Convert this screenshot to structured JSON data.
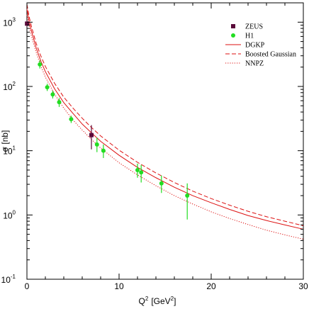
{
  "chart_data": {
    "type": "scatter",
    "xlabel_base": "Q",
    "xlabel_sup": "2",
    "xlabel_unit_open": "[GeV",
    "xlabel_unit_sup": "2",
    "xlabel_unit_close": "]",
    "ylabel": "σ [nb]",
    "xlim": [
      0,
      30
    ],
    "ylim": [
      0.1,
      2000
    ],
    "yscale": "log",
    "grid": false,
    "legend_position": "top-right",
    "x_ticks": [
      {
        "value": 0,
        "label": "0"
      },
      {
        "value": 10,
        "label": "10"
      },
      {
        "value": 20,
        "label": "20"
      },
      {
        "value": 30,
        "label": "30"
      }
    ],
    "y_ticks": [
      {
        "value": 0.1,
        "base": "10",
        "exp": "-1"
      },
      {
        "value": 1,
        "base": "10",
        "exp": "0"
      },
      {
        "value": 10,
        "base": "10",
        "exp": "1"
      },
      {
        "value": 100,
        "base": "10",
        "exp": "2"
      },
      {
        "value": 1000,
        "base": "10",
        "exp": "3"
      }
    ],
    "series": [
      {
        "name": "ZEUS",
        "kind": "points",
        "marker": "square",
        "color": "#5a0a3a",
        "points": [
          {
            "x": 0.01,
            "y": 950,
            "ylo": 860,
            "yhi": 1050
          },
          {
            "x": 7.0,
            "y": 17.5,
            "ylo": 10.5,
            "yhi": 25.0
          }
        ]
      },
      {
        "name": "H1",
        "kind": "points",
        "marker": "circle",
        "color": "#22dd22",
        "points": [
          {
            "x": 1.4,
            "y": 220,
            "ylo": 190,
            "yhi": 255
          },
          {
            "x": 2.2,
            "y": 97,
            "ylo": 85,
            "yhi": 110
          },
          {
            "x": 2.8,
            "y": 75,
            "ylo": 65,
            "yhi": 86
          },
          {
            "x": 3.5,
            "y": 57,
            "ylo": 48,
            "yhi": 66
          },
          {
            "x": 4.8,
            "y": 31,
            "ylo": 27,
            "yhi": 35
          },
          {
            "x": 7.6,
            "y": 12.5,
            "ylo": 9.5,
            "yhi": 16.0
          },
          {
            "x": 8.3,
            "y": 10.0,
            "ylo": 7.7,
            "yhi": 12.5
          },
          {
            "x": 12.0,
            "y": 5.0,
            "ylo": 3.8,
            "yhi": 6.3
          },
          {
            "x": 12.4,
            "y": 4.6,
            "ylo": 3.2,
            "yhi": 6.0
          },
          {
            "x": 14.6,
            "y": 3.1,
            "ylo": 2.2,
            "yhi": 4.1
          },
          {
            "x": 17.4,
            "y": 2.0,
            "ylo": 0.85,
            "yhi": 3.1
          }
        ]
      },
      {
        "name": "DGKP",
        "kind": "curve",
        "style": "solid",
        "color": "#dd1111",
        "points": [
          {
            "x": 0,
            "y": 1600
          },
          {
            "x": 0.25,
            "y": 1000
          },
          {
            "x": 0.5,
            "y": 720
          },
          {
            "x": 1,
            "y": 400
          },
          {
            "x": 1.5,
            "y": 250
          },
          {
            "x": 2,
            "y": 170
          },
          {
            "x": 3,
            "y": 92
          },
          {
            "x": 4,
            "y": 56
          },
          {
            "x": 5,
            "y": 38
          },
          {
            "x": 6,
            "y": 26
          },
          {
            "x": 7,
            "y": 19
          },
          {
            "x": 8,
            "y": 14
          },
          {
            "x": 10,
            "y": 8.5
          },
          {
            "x": 12,
            "y": 5.5
          },
          {
            "x": 14,
            "y": 3.8
          },
          {
            "x": 16,
            "y": 2.7
          },
          {
            "x": 18,
            "y": 2.0
          },
          {
            "x": 20,
            "y": 1.55
          },
          {
            "x": 22,
            "y": 1.22
          },
          {
            "x": 24,
            "y": 0.98
          },
          {
            "x": 26,
            "y": 0.82
          },
          {
            "x": 28,
            "y": 0.7
          },
          {
            "x": 30,
            "y": 0.6
          }
        ]
      },
      {
        "name": "Boosted Gaussian",
        "kind": "curve",
        "style": "dashed",
        "color": "#dd1111",
        "points": [
          {
            "x": 0,
            "y": 1900
          },
          {
            "x": 0.25,
            "y": 1200
          },
          {
            "x": 0.5,
            "y": 850
          },
          {
            "x": 1,
            "y": 470
          },
          {
            "x": 1.5,
            "y": 300
          },
          {
            "x": 2,
            "y": 205
          },
          {
            "x": 3,
            "y": 112
          },
          {
            "x": 4,
            "y": 68
          },
          {
            "x": 5,
            "y": 46
          },
          {
            "x": 6,
            "y": 32
          },
          {
            "x": 7,
            "y": 23
          },
          {
            "x": 8,
            "y": 17
          },
          {
            "x": 10,
            "y": 10.2
          },
          {
            "x": 12,
            "y": 6.6
          },
          {
            "x": 14,
            "y": 4.5
          },
          {
            "x": 16,
            "y": 3.2
          },
          {
            "x": 18,
            "y": 2.35
          },
          {
            "x": 20,
            "y": 1.8
          },
          {
            "x": 22,
            "y": 1.42
          },
          {
            "x": 24,
            "y": 1.14
          },
          {
            "x": 26,
            "y": 0.94
          },
          {
            "x": 28,
            "y": 0.8
          },
          {
            "x": 30,
            "y": 0.68
          }
        ]
      },
      {
        "name": "NNPZ",
        "kind": "curve",
        "style": "dotted",
        "color": "#dd1111",
        "points": [
          {
            "x": 0,
            "y": 1300
          },
          {
            "x": 0.25,
            "y": 850
          },
          {
            "x": 0.5,
            "y": 600
          },
          {
            "x": 1,
            "y": 340
          },
          {
            "x": 1.5,
            "y": 210
          },
          {
            "x": 2,
            "y": 140
          },
          {
            "x": 3,
            "y": 76
          },
          {
            "x": 4,
            "y": 46
          },
          {
            "x": 5,
            "y": 30
          },
          {
            "x": 6,
            "y": 21
          },
          {
            "x": 7,
            "y": 15
          },
          {
            "x": 8,
            "y": 11
          },
          {
            "x": 10,
            "y": 6.5
          },
          {
            "x": 12,
            "y": 4.2
          },
          {
            "x": 14,
            "y": 2.85
          },
          {
            "x": 16,
            "y": 2.0
          },
          {
            "x": 18,
            "y": 1.48
          },
          {
            "x": 20,
            "y": 1.12
          },
          {
            "x": 22,
            "y": 0.88
          },
          {
            "x": 24,
            "y": 0.71
          },
          {
            "x": 26,
            "y": 0.58
          },
          {
            "x": 28,
            "y": 0.49
          },
          {
            "x": 30,
            "y": 0.42
          }
        ]
      }
    ]
  }
}
